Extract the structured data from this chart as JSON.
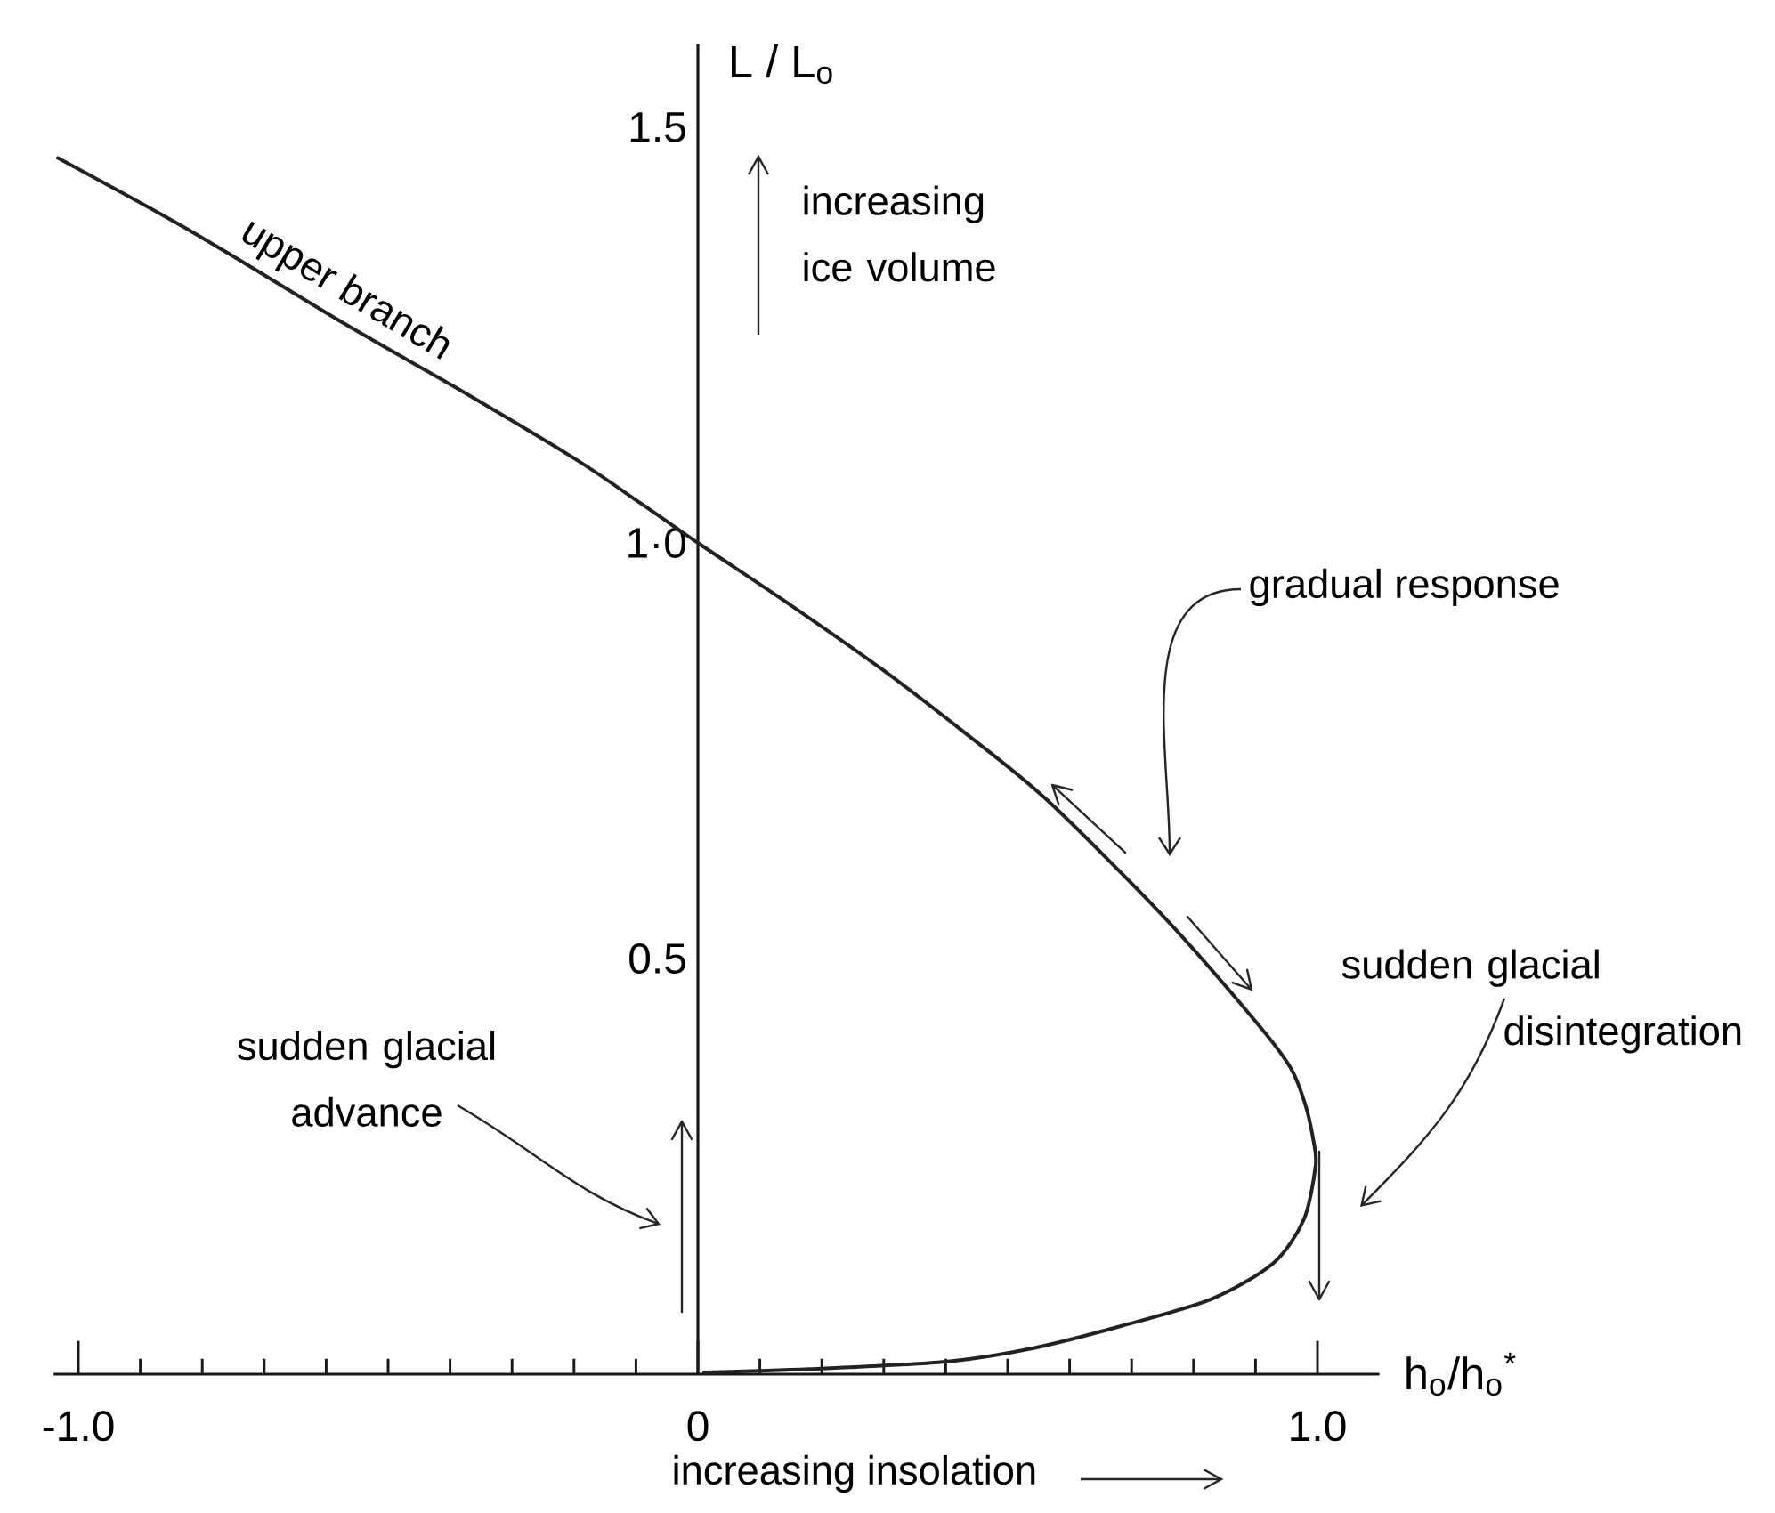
{
  "chart_data": {
    "type": "line",
    "xlabel": "h$_{o}$/h$_{o}$$^{*}$",
    "ylabel": "L / L$_{o}$",
    "xlim": [
      -1.04,
      1.1
    ],
    "ylim": [
      0,
      1.6
    ],
    "xticks": [
      {
        "value": -1,
        "label": "-1.0"
      },
      {
        "value": -0.9,
        "label": null
      },
      {
        "value": -0.8,
        "label": null
      },
      {
        "value": -0.7,
        "label": null
      },
      {
        "value": -0.6,
        "label": null
      },
      {
        "value": -0.5,
        "label": null
      },
      {
        "value": -0.4,
        "label": null
      },
      {
        "value": -0.3,
        "label": null
      },
      {
        "value": -0.2,
        "label": null
      },
      {
        "value": -0.1,
        "label": null
      },
      0,
      {
        "value": 0.1,
        "label": null
      },
      {
        "value": 0.2,
        "label": null
      },
      {
        "value": 0.3,
        "label": null
      },
      {
        "value": 0.4,
        "label": null
      },
      {
        "value": 0.5,
        "label": null
      },
      {
        "value": 0.6,
        "label": null
      },
      {
        "value": 0.7,
        "label": null
      },
      {
        "value": 0.8,
        "label": null
      },
      {
        "value": 0.9,
        "label": null
      },
      {
        "value": 1,
        "label": "1.0"
      }
    ],
    "yticks": [
      0.5,
      {
        "value": 1,
        "label": "1·0"
      },
      1.5
    ],
    "marker": "none",
    "line_style": "solid",
    "series": [
      {
        "color": "#222222",
        "x": [
          -1.033,
          -0.816,
          -0.569,
          -0.382,
          -0.196,
          -0.093,
          0,
          0.15,
          0.297,
          0.43,
          0.563,
          0.756,
          0.905,
          0.957,
          0.98,
          0.993,
          0.997,
          0.978,
          0.928,
          0.828,
          0.684,
          0.54,
          0.4,
          0.18,
          0.01
        ],
        "values": [
          1.463,
          1.374,
          1.263,
          1.183,
          1.1,
          1.048,
          1.0,
          0.925,
          0.848,
          0.772,
          0.691,
          0.547,
          0.42,
          0.368,
          0.325,
          0.283,
          0.251,
          0.186,
          0.133,
          0.09,
          0.058,
          0.031,
          0.015,
          0.006,
          0.002
        ]
      }
    ],
    "annotations": [
      {
        "text": "upper branch",
        "x": -0.57,
        "y": 1.26
      },
      "increasing ice volume",
      "gradual response",
      "sudden glacial disintegration",
      "sudden glacial advance",
      "increasing insolation"
    ]
  }
}
